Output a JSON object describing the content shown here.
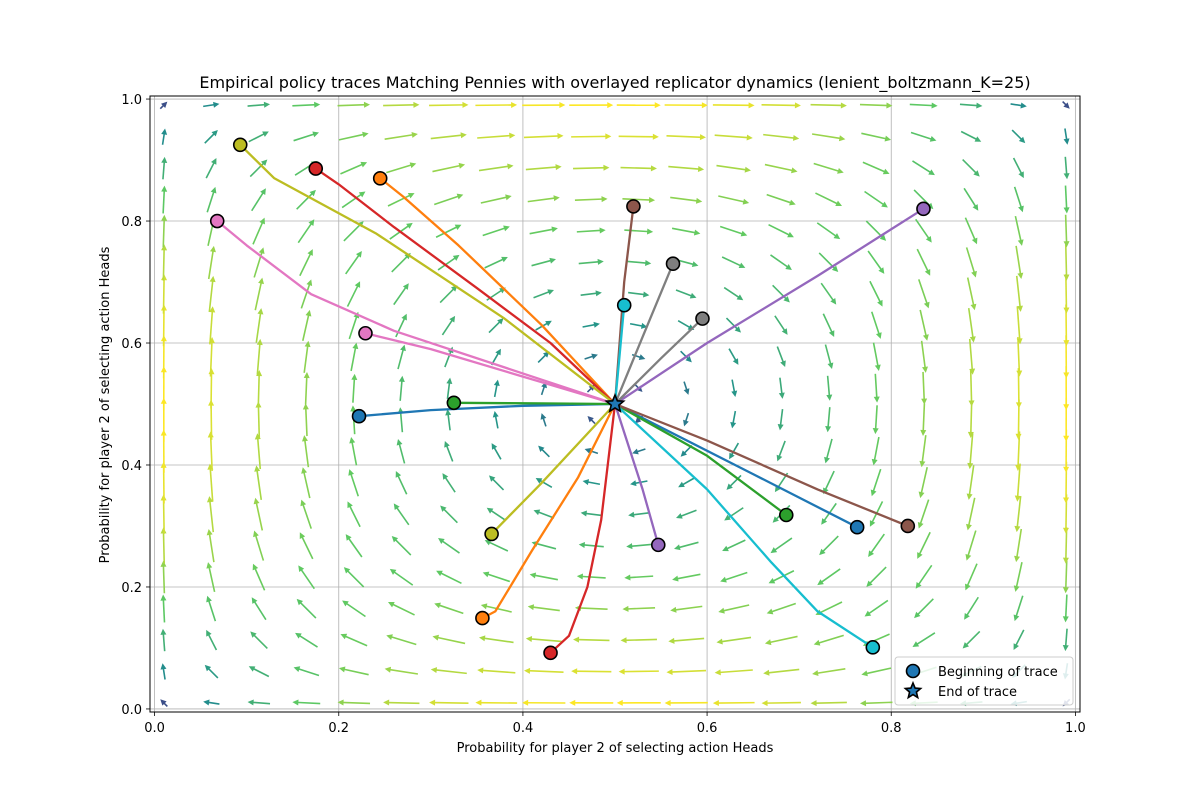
{
  "chart_data": {
    "type": "scatter",
    "title": "Empirical policy traces Matching Pennies with overlayed replicator dynamics (lenient_boltzmann_K=25)",
    "xlabel": "Probability for player 2 of selecting action Heads",
    "ylabel": "Probability for player 2 of selecting action Heads",
    "xlim": [
      -0.005,
      1.005
    ],
    "ylim": [
      -0.005,
      1.005
    ],
    "xticks": [
      "0.0",
      "0.2",
      "0.4",
      "0.6",
      "0.8",
      "1.0"
    ],
    "yticks": [
      "0.0",
      "0.2",
      "0.4",
      "0.6",
      "0.8",
      "1.0"
    ],
    "grid": true,
    "legend": {
      "placement": "lower-right",
      "entries": [
        {
          "label": "Beginning of trace",
          "marker": "circle"
        },
        {
          "label": "End of trace",
          "marker": "star"
        }
      ]
    },
    "end_point": [
      0.5,
      0.5
    ],
    "traces": [
      {
        "color": "#1f77b4",
        "points": [
          [
            0.222,
            0.48
          ],
          [
            0.3,
            0.49
          ],
          [
            0.4,
            0.497
          ],
          [
            0.5,
            0.5
          ]
        ]
      },
      {
        "color": "#ff7f0e",
        "points": [
          [
            0.245,
            0.87
          ],
          [
            0.27,
            0.84
          ],
          [
            0.33,
            0.76
          ],
          [
            0.42,
            0.63
          ],
          [
            0.5,
            0.5
          ]
        ]
      },
      {
        "color": "#2ca02c",
        "points": [
          [
            0.325,
            0.502
          ],
          [
            0.42,
            0.501
          ],
          [
            0.5,
            0.5
          ]
        ]
      },
      {
        "color": "#d62728",
        "points": [
          [
            0.175,
            0.886
          ],
          [
            0.2,
            0.86
          ],
          [
            0.26,
            0.79
          ],
          [
            0.35,
            0.69
          ],
          [
            0.43,
            0.6
          ],
          [
            0.5,
            0.5
          ]
        ]
      },
      {
        "color": "#9467bd",
        "points": [
          [
            0.835,
            0.82
          ],
          [
            0.72,
            0.71
          ],
          [
            0.6,
            0.6
          ],
          [
            0.5,
            0.5
          ]
        ]
      },
      {
        "color": "#8c564b",
        "points": [
          [
            0.52,
            0.824
          ],
          [
            0.51,
            0.7
          ],
          [
            0.505,
            0.6
          ],
          [
            0.5,
            0.5
          ]
        ]
      },
      {
        "color": "#e377c2",
        "points": [
          [
            0.068,
            0.8
          ],
          [
            0.1,
            0.76
          ],
          [
            0.17,
            0.68
          ],
          [
            0.26,
            0.62
          ],
          [
            0.38,
            0.56
          ],
          [
            0.5,
            0.5
          ]
        ]
      },
      {
        "color": "#7f7f7f",
        "points": [
          [
            0.563,
            0.73
          ],
          [
            0.53,
            0.61
          ],
          [
            0.5,
            0.5
          ]
        ]
      },
      {
        "color": "#bcbd22",
        "points": [
          [
            0.093,
            0.925
          ],
          [
            0.13,
            0.87
          ],
          [
            0.24,
            0.78
          ],
          [
            0.38,
            0.64
          ],
          [
            0.5,
            0.5
          ]
        ]
      },
      {
        "color": "#17becf",
        "points": [
          [
            0.51,
            0.662
          ],
          [
            0.505,
            0.58
          ],
          [
            0.5,
            0.5
          ]
        ]
      },
      {
        "color": "#1f77b4",
        "points": [
          [
            0.763,
            0.298
          ],
          [
            0.65,
            0.385
          ],
          [
            0.5,
            0.5
          ]
        ]
      },
      {
        "color": "#ff7f0e",
        "points": [
          [
            0.356,
            0.149
          ],
          [
            0.37,
            0.16
          ],
          [
            0.41,
            0.26
          ],
          [
            0.46,
            0.38
          ],
          [
            0.5,
            0.5
          ]
        ]
      },
      {
        "color": "#2ca02c",
        "points": [
          [
            0.686,
            0.318
          ],
          [
            0.6,
            0.415
          ],
          [
            0.5,
            0.5
          ]
        ]
      },
      {
        "color": "#d62728",
        "points": [
          [
            0.43,
            0.092
          ],
          [
            0.45,
            0.12
          ],
          [
            0.47,
            0.2
          ],
          [
            0.485,
            0.31
          ],
          [
            0.5,
            0.5
          ]
        ]
      },
      {
        "color": "#9467bd",
        "points": [
          [
            0.547,
            0.269
          ],
          [
            0.53,
            0.36
          ],
          [
            0.5,
            0.5
          ]
        ]
      },
      {
        "color": "#8c564b",
        "points": [
          [
            0.818,
            0.3
          ],
          [
            0.72,
            0.36
          ],
          [
            0.6,
            0.44
          ],
          [
            0.5,
            0.5
          ]
        ]
      },
      {
        "color": "#e377c2",
        "points": [
          [
            0.229,
            0.616
          ],
          [
            0.3,
            0.59
          ],
          [
            0.4,
            0.545
          ],
          [
            0.5,
            0.5
          ]
        ]
      },
      {
        "color": "#7f7f7f",
        "points": [
          [
            0.595,
            0.64
          ],
          [
            0.55,
            0.575
          ],
          [
            0.5,
            0.5
          ]
        ]
      },
      {
        "color": "#bcbd22",
        "points": [
          [
            0.366,
            0.287
          ],
          [
            0.42,
            0.37
          ],
          [
            0.5,
            0.5
          ]
        ]
      },
      {
        "color": "#17becf",
        "points": [
          [
            0.78,
            0.101
          ],
          [
            0.72,
            0.16
          ],
          [
            0.67,
            0.24
          ],
          [
            0.6,
            0.36
          ],
          [
            0.5,
            0.5
          ]
        ]
      }
    ]
  }
}
